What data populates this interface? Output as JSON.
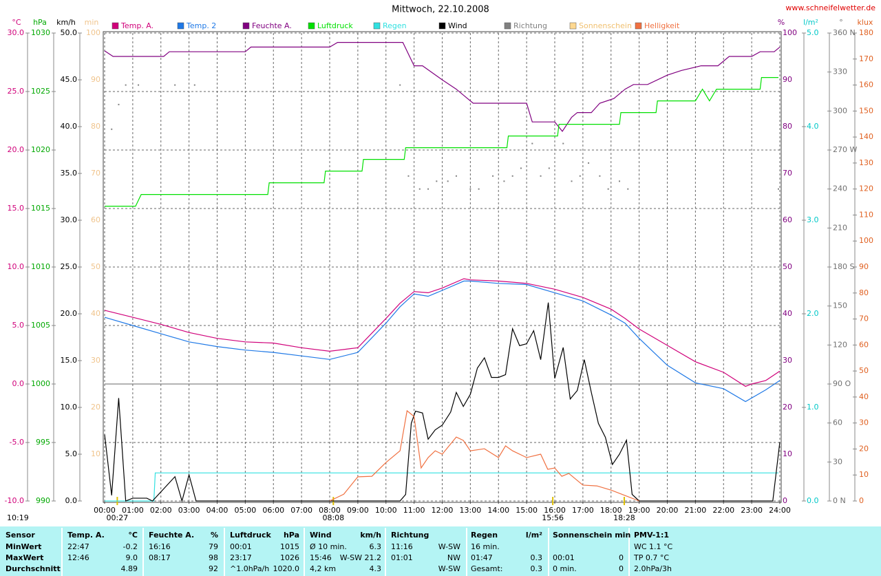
{
  "chart_data": {
    "type": "line",
    "title": "Mittwoch, 22.10.2008",
    "source": "www.schneifelwetter.de",
    "time_note": "10:19",
    "xlim": [
      0,
      24
    ],
    "xticks": [
      {
        "value": 0,
        "label": "00:00"
      },
      {
        "value": 1,
        "label": "01:00"
      },
      {
        "value": 2,
        "label": "02:00"
      },
      {
        "value": 3,
        "label": "03:00"
      },
      {
        "value": 4,
        "label": "04:00"
      },
      {
        "value": 5,
        "label": "05:00"
      },
      {
        "value": 6,
        "label": "06:00"
      },
      {
        "value": 7,
        "label": "07:00"
      },
      {
        "value": 8,
        "label": "08:00"
      },
      {
        "value": 9,
        "label": "09:00"
      },
      {
        "value": 10,
        "label": "10:00"
      },
      {
        "value": 11,
        "label": "11:00"
      },
      {
        "value": 12,
        "label": "12:00"
      },
      {
        "value": 13,
        "label": "13:00"
      },
      {
        "value": 14,
        "label": "14:00"
      },
      {
        "value": 15,
        "label": "15:00"
      },
      {
        "value": 16,
        "label": "16:00"
      },
      {
        "value": 17,
        "label": "17:00"
      },
      {
        "value": 18,
        "label": "18:00"
      },
      {
        "value": 19,
        "label": "19:00"
      },
      {
        "value": 20,
        "label": "20:00"
      },
      {
        "value": 21,
        "label": "21:00"
      },
      {
        "value": 22,
        "label": "22:00"
      },
      {
        "value": 23,
        "label": "23:00"
      },
      {
        "value": 24,
        "label": "24:00"
      }
    ],
    "grid": true,
    "markers": [
      {
        "label": "00:27",
        "x": 0.45
      },
      {
        "label": "08:08",
        "x": 8.13
      },
      {
        "label": "15:56",
        "x": 15.93
      },
      {
        "label": "18:28",
        "x": 18.47
      }
    ],
    "axes": [
      {
        "label": "°C",
        "color": "#d0007a",
        "lim": [
          -10,
          30
        ],
        "ticks": [
          {
            "value": -10,
            "label": "-10.0"
          },
          {
            "value": -5,
            "label": "-5.0"
          },
          {
            "value": 0,
            "label": "0.0"
          },
          {
            "value": 5,
            "label": "5.0"
          },
          {
            "value": 10,
            "label": "10.0"
          },
          {
            "value": 15,
            "label": "15.0"
          },
          {
            "value": 20,
            "label": "20.0"
          },
          {
            "value": 25,
            "label": "25.0"
          },
          {
            "value": 30,
            "label": "30.0"
          }
        ]
      },
      {
        "label": "hPa",
        "color": "#00a800",
        "lim": [
          990,
          1030
        ],
        "ticks": [
          990,
          995,
          1000,
          1005,
          1010,
          1015,
          1020,
          1025,
          1030
        ]
      },
      {
        "label": "km/h",
        "color": "#000000",
        "lim": [
          0,
          50
        ],
        "ticks": [
          {
            "value": 0,
            "label": "0.0"
          },
          {
            "value": 5,
            "label": "5.0"
          },
          {
            "value": 10,
            "label": "10.0"
          },
          {
            "value": 15,
            "label": "15.0"
          },
          {
            "value": 20,
            "label": "20.0"
          },
          {
            "value": 25,
            "label": "25.0"
          },
          {
            "value": 30,
            "label": "30.0"
          },
          {
            "value": 35,
            "label": "35.0"
          },
          {
            "value": 40,
            "label": "40.0"
          },
          {
            "value": 45,
            "label": "45.0"
          },
          {
            "value": 50,
            "label": "50.0"
          }
        ]
      },
      {
        "label": "min",
        "color": "#f0c48c",
        "lim": [
          0,
          100
        ],
        "ticks": [
          10,
          20,
          30,
          40,
          50,
          60,
          70,
          80,
          90,
          100
        ]
      },
      {
        "label": "%",
        "color": "#800080",
        "lim": [
          0,
          100
        ],
        "ticks": [
          0,
          10,
          20,
          30,
          40,
          50,
          60,
          70,
          80,
          90,
          100
        ]
      },
      {
        "label": "l/m²",
        "color": "#00c8c8",
        "lim": [
          0,
          5
        ],
        "ticks": [
          {
            "value": 0,
            "label": "0.0"
          },
          {
            "value": 1,
            "label": "1.0"
          },
          {
            "value": 2,
            "label": "2.0"
          },
          {
            "value": 3,
            "label": "3.0"
          },
          {
            "value": 4,
            "label": "4.0"
          },
          {
            "value": 5,
            "label": "5.0"
          }
        ]
      },
      {
        "label": "°",
        "color": "#707070",
        "lim": [
          0,
          360
        ],
        "ticks": [
          {
            "value": 0,
            "label": "0 N"
          },
          30,
          60,
          {
            "value": 90,
            "label": "90 O"
          },
          120,
          150,
          {
            "value": 180,
            "label": "180 S"
          },
          210,
          240,
          {
            "value": 270,
            "label": "270 W"
          },
          300,
          330,
          {
            "value": 360,
            "label": "360 N"
          }
        ]
      },
      {
        "label": "klux",
        "color": "#e06020",
        "lim": [
          0,
          180
        ],
        "ticks": [
          0,
          10,
          20,
          30,
          40,
          50,
          60,
          70,
          80,
          90,
          100,
          110,
          120,
          130,
          140,
          150,
          160,
          170,
          180
        ]
      }
    ],
    "series": [
      {
        "name": "Temp. A.",
        "color": "#d0007a",
        "axis": 0,
        "x": [
          0,
          1,
          2,
          3,
          4,
          5,
          6,
          7,
          8,
          9,
          10,
          10.5,
          11,
          11.5,
          12,
          12.77,
          13,
          14,
          15,
          16,
          17,
          18,
          18.5,
          19,
          20,
          21,
          22,
          22.78,
          23,
          23.5,
          24
        ],
        "values": [
          6.3,
          5.7,
          5.1,
          4.4,
          3.9,
          3.6,
          3.5,
          3.1,
          2.8,
          3.1,
          5.6,
          6.9,
          7.9,
          7.8,
          8.2,
          9.0,
          8.9,
          8.8,
          8.6,
          8.1,
          7.4,
          6.4,
          5.6,
          4.7,
          3.3,
          1.9,
          1.0,
          -0.2,
          0,
          0.3,
          1.1
        ]
      },
      {
        "name": "Temp. 2",
        "color": "#1e78e6",
        "axis": 0,
        "x": [
          0,
          1,
          2,
          3,
          4,
          5,
          6,
          7,
          8,
          9,
          10,
          10.5,
          11,
          11.5,
          12,
          12.77,
          13,
          14,
          15,
          16,
          17,
          18,
          18.5,
          19,
          20,
          21,
          22,
          22.78,
          23.5,
          24
        ],
        "values": [
          5.7,
          5.0,
          4.3,
          3.6,
          3.2,
          2.9,
          2.7,
          2.4,
          2.1,
          2.7,
          5.2,
          6.6,
          7.7,
          7.5,
          8.0,
          8.8,
          8.8,
          8.6,
          8.5,
          7.8,
          7.1,
          5.9,
          5.2,
          3.9,
          1.6,
          0.1,
          -0.4,
          -1.5,
          -0.5,
          0.3
        ]
      },
      {
        "name": "Feuchte A.",
        "color": "#800080",
        "axis": 4,
        "x": [
          0,
          0.3,
          2.1,
          2.3,
          5.0,
          5.2,
          8.0,
          8.28,
          10.6,
          11.0,
          11.3,
          12.0,
          12.5,
          12.8,
          13.1,
          15.0,
          15.2,
          16.0,
          16.27,
          16.6,
          16.8,
          17.3,
          17.6,
          18.1,
          18.5,
          18.8,
          19.3,
          20.0,
          20.5,
          21.2,
          21.8,
          22.2,
          23.0,
          23.3,
          23.8,
          24
        ],
        "values": [
          96.2,
          95,
          95,
          96,
          96,
          97,
          97,
          98,
          98,
          93,
          93,
          90,
          88,
          86.5,
          85,
          85,
          81,
          81,
          79,
          82,
          83,
          83,
          85,
          86,
          88,
          89,
          89,
          91,
          92,
          93,
          93,
          95,
          95,
          96,
          96,
          97
        ]
      },
      {
        "name": "Luftdruck",
        "color": "#00e000",
        "axis": 1,
        "x": [
          0,
          1.1,
          1.3,
          5.8,
          5.85,
          7.8,
          7.85,
          9.15,
          9.2,
          10.65,
          10.7,
          14.3,
          14.35,
          16.1,
          16.15,
          18.3,
          18.35,
          19.6,
          19.65,
          21.0,
          21.25,
          21.5,
          21.75,
          23.3,
          23.35,
          23.95
        ],
        "values": [
          1015.2,
          1015.2,
          1016.2,
          1016.2,
          1017.2,
          1017.2,
          1018.2,
          1018.2,
          1019.2,
          1019.2,
          1020.2,
          1020.2,
          1021.2,
          1021.2,
          1022.2,
          1022.2,
          1023.2,
          1023.2,
          1024.2,
          1024.2,
          1025.2,
          1024.2,
          1025.2,
          1025.2,
          1026.2,
          1026.2
        ]
      },
      {
        "name": "Regen",
        "color": "#30e0e0",
        "axis": 5,
        "x": [
          0,
          1.75,
          1.8,
          23.95
        ],
        "values": [
          0,
          0,
          0.3,
          0.3
        ]
      },
      {
        "name": "Wind",
        "color": "#000000",
        "axis": 2,
        "x": [
          0,
          0.25,
          0.5,
          0.75,
          1,
          1.5,
          1.7,
          2.5,
          2.75,
          3,
          3.25,
          10.5,
          10.7,
          10.9,
          11.05,
          11.3,
          11.5,
          11.75,
          12,
          12.3,
          12.5,
          12.75,
          13,
          13.25,
          13.5,
          13.75,
          14,
          14.25,
          14.5,
          14.75,
          15,
          15.25,
          15.5,
          15.77,
          16,
          16.3,
          16.55,
          16.8,
          17.05,
          17.3,
          17.55,
          17.8,
          18.05,
          18.3,
          18.55,
          18.75,
          19,
          23.75,
          24
        ],
        "values": [
          7.1,
          0.6,
          11,
          0,
          0.3,
          0.3,
          0,
          2.6,
          0,
          2.8,
          0,
          0,
          0.7,
          8.3,
          9.6,
          9.4,
          6.6,
          7.6,
          8.1,
          9.5,
          11.6,
          10.1,
          11.4,
          14.2,
          15.3,
          13.2,
          13.2,
          13.5,
          18.4,
          16.6,
          16.8,
          18.2,
          15.1,
          21.2,
          13.1,
          16.4,
          10.9,
          11.8,
          15.1,
          11.6,
          8.3,
          6.8,
          3.9,
          5,
          6.5,
          0.7,
          0,
          0,
          6.3
        ]
      },
      {
        "name": "Richtung",
        "color": "#808080",
        "axis": 6,
        "style": "dots",
        "x": [
          0.25,
          0.5,
          0.75,
          1.2,
          2.5,
          3.2,
          10.5,
          10.8,
          11.2,
          11.5,
          11.8,
          12.2,
          12.5,
          13,
          13.3,
          13.8,
          14.2,
          14.5,
          14.8,
          15.2,
          15.5,
          15.8,
          16.3,
          16.6,
          16.9,
          17.2,
          17.6,
          17.9,
          18.3,
          18.6,
          23.95
        ],
        "values": [
          286,
          305,
          320,
          320,
          320,
          320,
          320,
          250,
          240,
          240,
          246,
          246,
          250,
          240,
          240,
          250,
          246,
          250,
          256,
          275,
          250,
          256,
          275,
          246,
          250,
          260,
          250,
          240,
          246,
          240,
          240
        ]
      },
      {
        "name": "Sonnenschein",
        "color": "#ffd890",
        "axis": 3
      },
      {
        "name": "Helligkeit",
        "color": "#f07040",
        "axis": 7,
        "x": [
          8,
          8.5,
          9,
          9.5,
          10,
          10.5,
          10.75,
          11,
          11.25,
          11.5,
          11.75,
          12,
          12.5,
          12.75,
          13,
          13.5,
          14,
          14.25,
          14.5,
          15,
          15.5,
          15.75,
          16,
          16.25,
          16.5,
          17,
          17.5,
          18,
          18.5,
          19
        ],
        "values": [
          0,
          2.6,
          9.3,
          9.5,
          14.8,
          19.3,
          34.7,
          32.5,
          12.7,
          16.7,
          19.3,
          18,
          24.6,
          23.3,
          19.3,
          20.1,
          16.7,
          21.2,
          19.3,
          16.7,
          18,
          12.2,
          12.7,
          9.5,
          10.6,
          6.1,
          5.8,
          4.2,
          2.1,
          0
        ]
      }
    ],
    "table": {
      "header": {
        "label": "Sensor",
        "c1": "Temp. A.",
        "c2": "°C",
        "c3": "Feuchte A.",
        "c4": "%",
        "c5": "Luftdruck",
        "c6": "hPa",
        "c7": "Wind",
        "c8": "km/h",
        "c9": "Richtung",
        "c11": "Regen",
        "c12": "l/m²",
        "c13": "Sonnenschein min",
        "c15": "PMV-1:1"
      },
      "rows": [
        {
          "label": "MinWert",
          "c1": "22:47",
          "c2": "-0.2",
          "c3": "16:16",
          "c4": "79",
          "c5": "00:01",
          "c6": "1015",
          "c7": "Ø 10 min.",
          "c8": "6.3",
          "c9": "11:16",
          "c10": "W-SW",
          "c11": "16 min.",
          "c15": "WC 1.1 °C"
        },
        {
          "label": "MaxWert",
          "c1": "12:46",
          "c2": "9.0",
          "c3": "08:17",
          "c4": "98",
          "c5": "23:17",
          "c6": "1026",
          "c7": "15:46",
          "c8": "W-SW 21.2",
          "c9": "01:01",
          "c10": "NW",
          "c11": "01:47",
          "c12": "0.3",
          "c13": "00:01",
          "c14": "0",
          "c15": "TP 0.7 °C"
        },
        {
          "label": "Durchschnitt",
          "c2": "4.89",
          "c4": "92",
          "c5": "^1.0hPa/h",
          "c6": "1020.0",
          "c7": "4,2 km",
          "c8": "4.3",
          "c10": "W-SW",
          "c11": "Gesamt:",
          "c12": "0.3",
          "c13": "0 min.",
          "c14": "0",
          "c15": "2.0hPa/3h"
        }
      ]
    }
  }
}
